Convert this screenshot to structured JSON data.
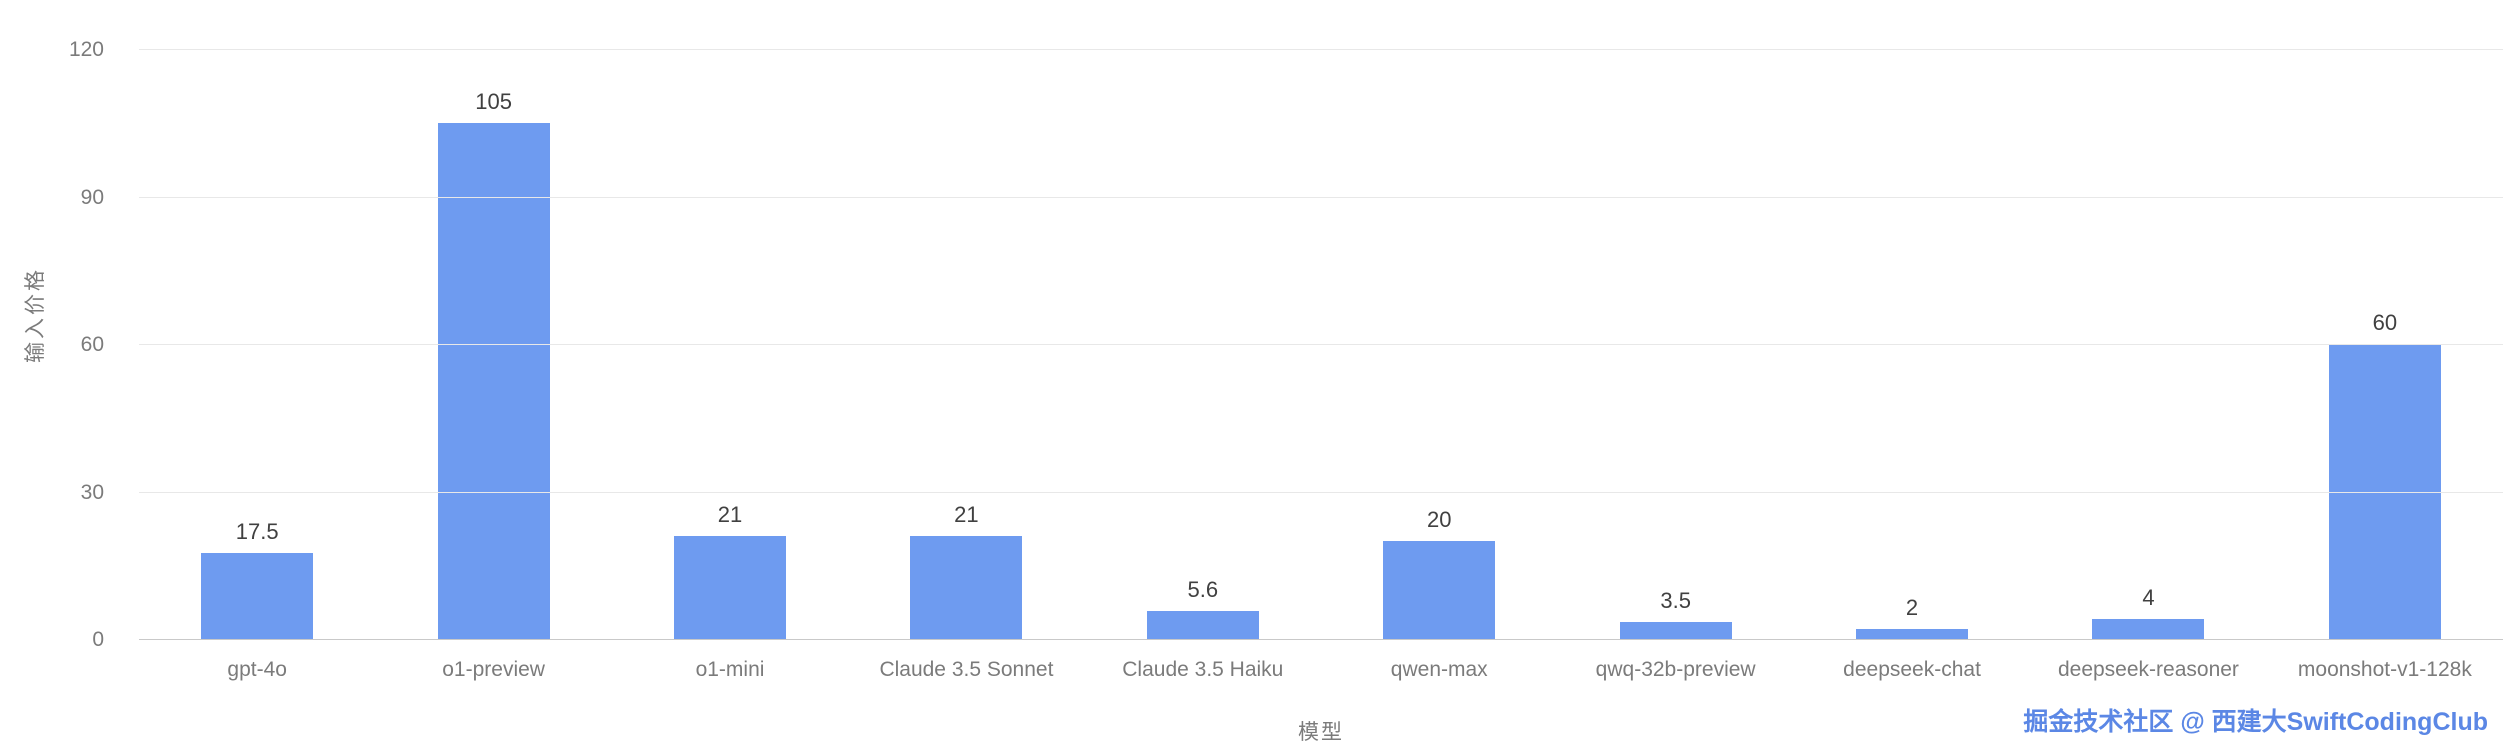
{
  "chart_data": {
    "type": "bar",
    "categories": [
      "gpt-4o",
      "o1-preview",
      "o1-mini",
      "Claude 3.5 Sonnet",
      "Claude 3.5 Haiku",
      "qwen-max",
      "qwq-32b-preview",
      "deepseek-chat",
      "deepseek-reasoner",
      "moonshot-v1-128k"
    ],
    "values": [
      17.5,
      105,
      21,
      21,
      5.6,
      20,
      3.5,
      2,
      4,
      60
    ],
    "value_labels": [
      "17.5",
      "105",
      "21",
      "21",
      "5.6",
      "20",
      "3.5",
      "2",
      "4",
      "60"
    ],
    "title": "",
    "xlabel": "模型",
    "ylabel": "输入价格",
    "ylim": [
      0,
      120
    ],
    "yticks": [
      0,
      30,
      60,
      90,
      120
    ],
    "grid": true,
    "legend": "none",
    "bar_color": "#6e9bf0"
  },
  "watermark": {
    "text": "掘金技术社区 @ 西建大SwiftCodingClub"
  },
  "colors": {
    "bar": "#6e9bf0",
    "gridline": "#e8e8e8",
    "axis_text": "#7b7b7b",
    "value_label_text": "#404040",
    "watermark": "#5b87e5",
    "background": "#ffffff"
  }
}
